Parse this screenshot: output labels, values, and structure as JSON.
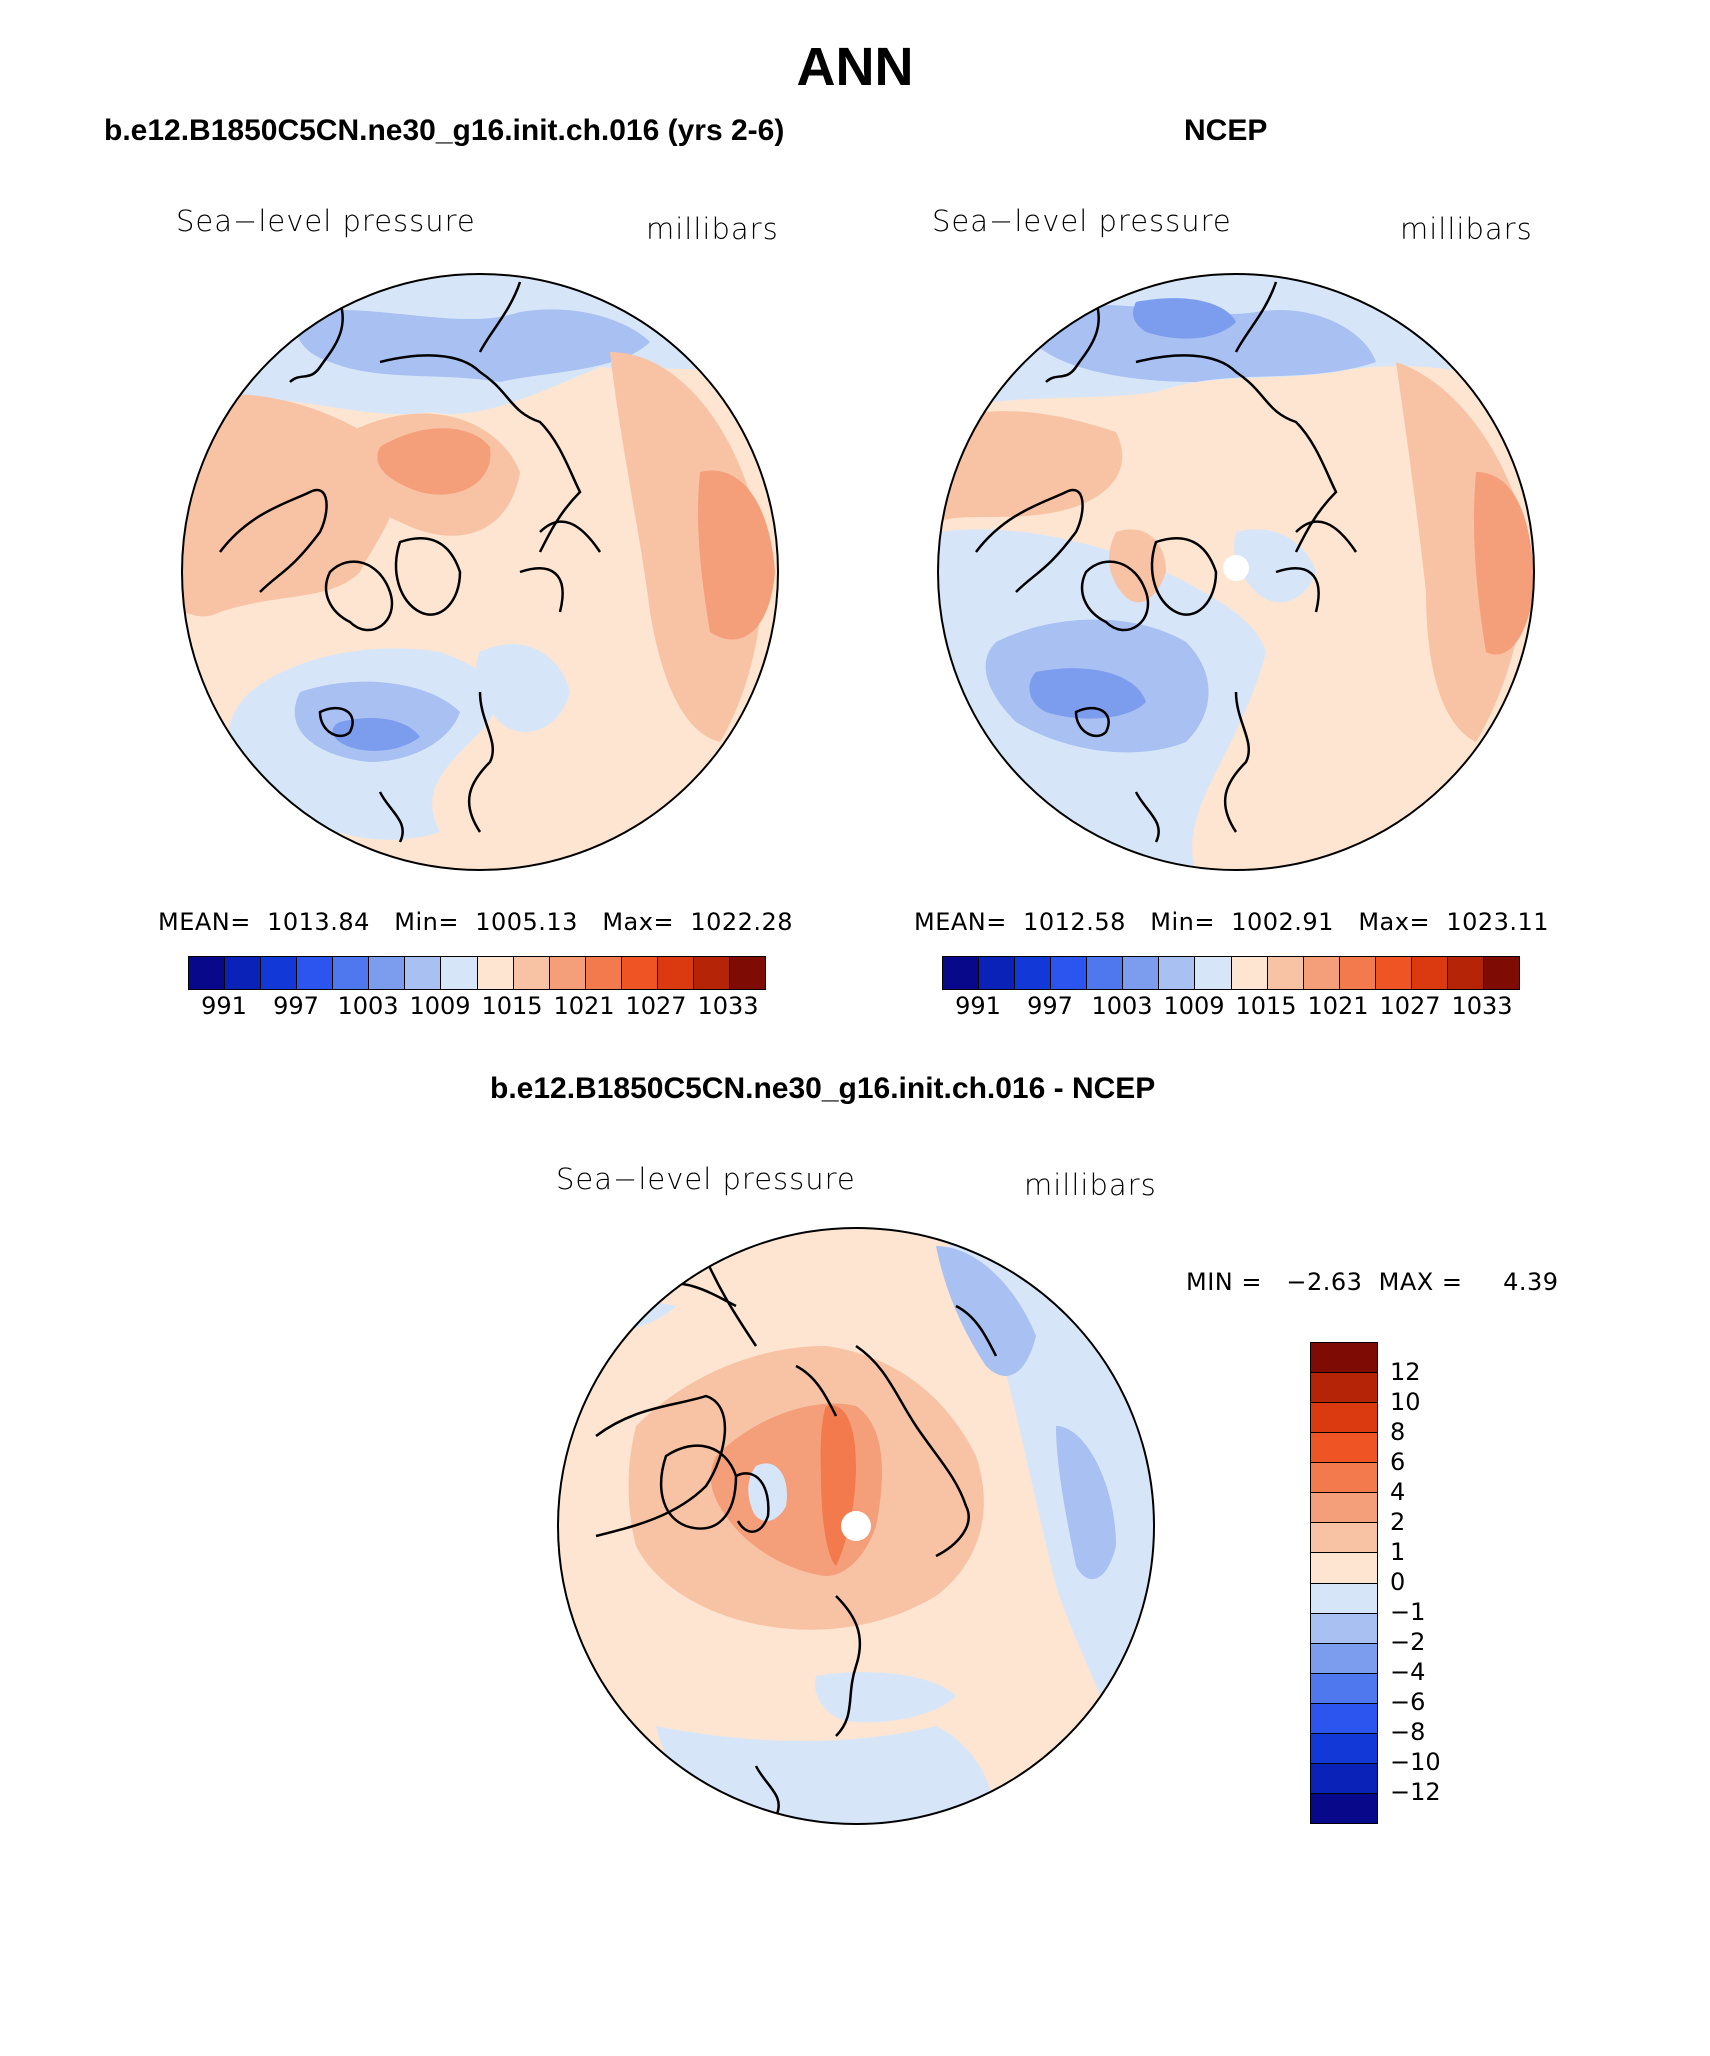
{
  "main_title": "ANN",
  "panels": [
    {
      "title": "b.e12.B1850C5CN.ne30_g16.init.ch.016 (yrs 2-6)",
      "left_label": "Sea−level pressure",
      "right_label": "millibars",
      "stats": "MEAN=  1013.84   Min=  1005.13   Max=  1022.28"
    },
    {
      "title": "NCEP",
      "left_label": "Sea−level pressure",
      "right_label": "millibars",
      "stats": "MEAN=  1012.58   Min=  1002.91   Max=  1023.11"
    },
    {
      "title": "b.e12.B1850C5CN.ne30_g16.init.ch.016 - NCEP",
      "left_label": "Sea−level pressure",
      "right_label": "millibars",
      "stats": "MIN =   −2.63  MAX =     4.39"
    }
  ],
  "abs_colorbar": {
    "labels": [
      "991",
      "997",
      "1003",
      "1009",
      "1015",
      "1021",
      "1027",
      "1033"
    ],
    "colors": [
      "#08088a",
      "#0a22b8",
      "#1238d8",
      "#2b55ee",
      "#4f78ee",
      "#7c9cee",
      "#a8c0f2",
      "#d6e6f8",
      "#fde5d2",
      "#f8c3a4",
      "#f49e7a",
      "#f27a4c",
      "#ee5424",
      "#db3a10",
      "#b52406",
      "#7e0c04"
    ]
  },
  "diff_colorbar": {
    "labels": [
      "12",
      "10",
      "8",
      "6",
      "4",
      "2",
      "1",
      "0",
      "−1",
      "−2",
      "−4",
      "−6",
      "−8",
      "−10",
      "−12"
    ],
    "colors": [
      "#7e0c04",
      "#b52406",
      "#db3a10",
      "#ee5424",
      "#f27a4c",
      "#f49e7a",
      "#f8c3a4",
      "#fde5d2",
      "#d6e6f8",
      "#a8c0f2",
      "#7c9cee",
      "#4f78ee",
      "#2b55ee",
      "#1238d8",
      "#0a22b8",
      "#08088a"
    ]
  }
}
